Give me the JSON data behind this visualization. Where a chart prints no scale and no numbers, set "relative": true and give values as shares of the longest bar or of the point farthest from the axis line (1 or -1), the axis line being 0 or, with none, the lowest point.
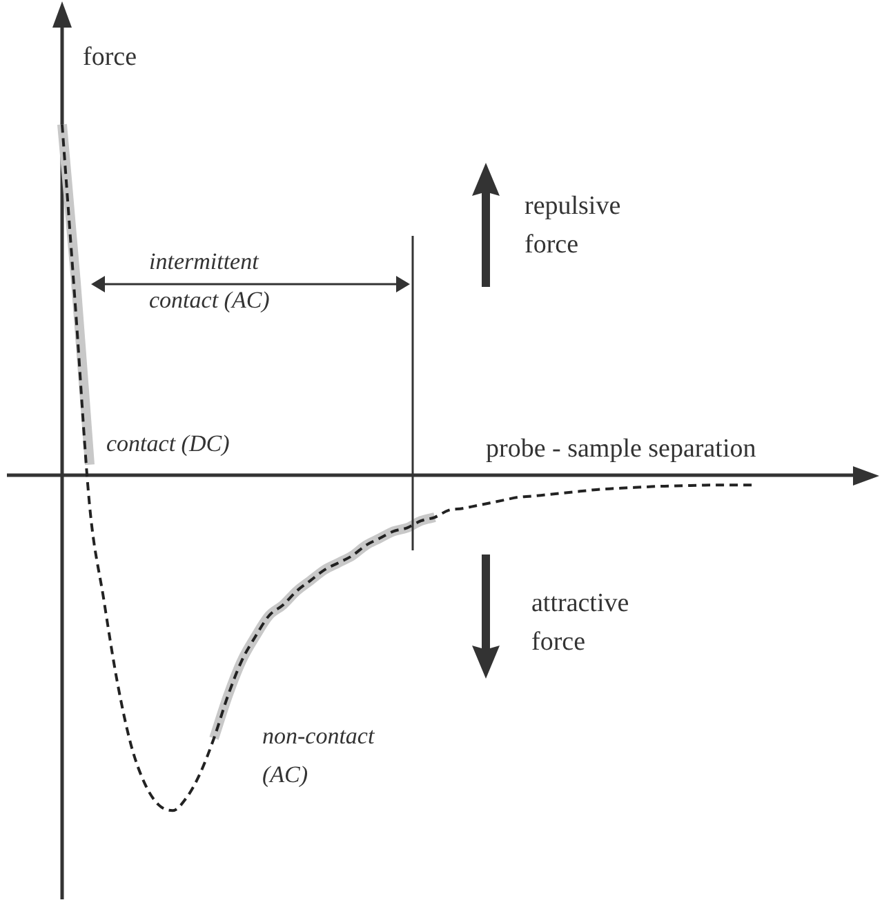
{
  "chart_data": {
    "type": "line",
    "relative": true,
    "legend": false,
    "grid": false,
    "tick_labels": false,
    "xlabel": "probe - sample separation",
    "ylabel": "force",
    "categories": [
      null,
      null,
      null,
      null,
      null,
      null,
      null,
      null,
      null,
      null,
      null,
      null,
      null,
      null,
      null,
      null,
      null,
      null,
      null,
      null,
      null,
      null,
      null,
      null,
      null,
      null,
      null,
      null,
      null,
      null,
      null,
      null,
      null,
      null,
      null,
      null,
      null,
      null,
      null,
      null,
      null,
      null,
      null,
      null,
      null,
      null,
      null,
      null,
      null,
      null,
      null,
      null,
      null,
      null,
      null,
      null,
      null,
      null,
      null
    ],
    "series": [
      {
        "color": "#c8c8c8",
        "line_style": "solid",
        "values": [
          1.0,
          0.55,
          0.03,
          null,
          null,
          null,
          null,
          null,
          null,
          null,
          null,
          null,
          null,
          null,
          null,
          null,
          null,
          null,
          null,
          null,
          null,
          null,
          null,
          null,
          null,
          null,
          null,
          null,
          null,
          null,
          null,
          null,
          null,
          null,
          null,
          null,
          null,
          null,
          null,
          null,
          null,
          null,
          null,
          null,
          null,
          null,
          null,
          null,
          null,
          null,
          null,
          null,
          null,
          null,
          null,
          null,
          null,
          null,
          null
        ]
      },
      {
        "color": "#c8c8c8",
        "line_style": "solid",
        "values": [
          null,
          null,
          null,
          null,
          null,
          null,
          null,
          null,
          null,
          null,
          null,
          -0.75,
          -0.63,
          -0.53,
          -0.46,
          -0.4,
          -0.37,
          -0.33,
          -0.3,
          -0.27,
          -0.25,
          -0.23,
          -0.2,
          -0.18,
          -0.16,
          -0.15,
          -0.13,
          -0.12,
          null,
          null,
          null,
          null,
          null,
          null,
          null,
          null,
          null,
          null,
          null,
          null,
          null,
          null,
          null,
          null,
          null,
          null,
          null,
          null,
          null,
          null,
          null,
          null,
          null,
          null,
          null,
          null,
          null,
          null,
          null
        ]
      },
      {
        "color": "#222222",
        "line_style": "dashed",
        "values": [
          1.0,
          0.46,
          -0.09,
          -0.35,
          -0.59,
          -0.77,
          -0.88,
          -0.94,
          -0.956,
          -0.92,
          -0.85,
          -0.75,
          -0.63,
          -0.53,
          -0.46,
          -0.4,
          -0.37,
          -0.33,
          -0.3,
          -0.27,
          -0.25,
          -0.23,
          -0.2,
          -0.18,
          -0.16,
          -0.15,
          -0.13,
          -0.12,
          -0.1,
          -0.095,
          -0.087,
          -0.079,
          -0.071,
          -0.063,
          -0.06,
          -0.056,
          -0.052,
          -0.048,
          -0.044,
          -0.04,
          -0.038,
          -0.036,
          -0.034,
          -0.032,
          -0.031,
          -0.03,
          -0.029,
          -0.028,
          -0.028,
          -0.028,
          -0.028,
          null,
          null,
          null,
          null,
          null,
          null,
          null,
          null
        ]
      }
    ],
    "annotations": [
      "intermittent\ncontact (AC)",
      "repulsive\nforce",
      "attractive\nforce",
      "contact (DC)",
      "non-contact\n(AC)"
    ]
  }
}
